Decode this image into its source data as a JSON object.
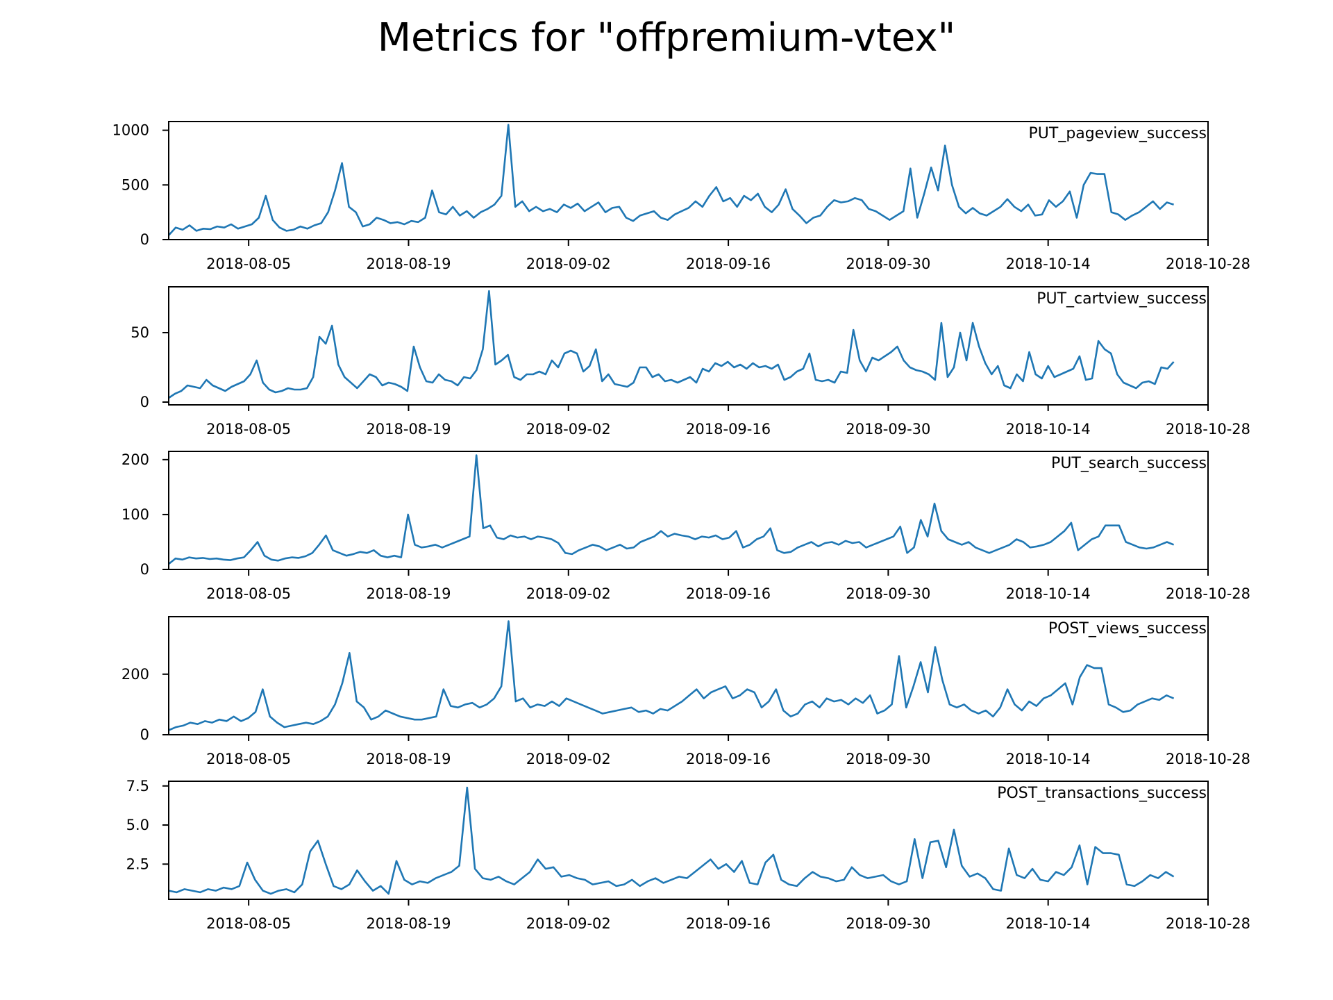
{
  "figure": {
    "title": "Metrics for \"offpremium-vtex\"",
    "line_color": "#1f77b4"
  },
  "chart_data": [
    {
      "type": "line",
      "title": "PUT_pageview_success",
      "x_axis": {
        "start": "2018-07-29",
        "end": "2018-10-28",
        "ticks": [
          "2018-08-05",
          "2018-08-19",
          "2018-09-02",
          "2018-09-16",
          "2018-09-30",
          "2018-10-14",
          "2018-10-28"
        ]
      },
      "ylim": [
        0,
        1080
      ],
      "yticks": [
        {
          "v": 0,
          "label": "0"
        },
        {
          "v": 500,
          "label": "500"
        },
        {
          "v": 1000,
          "label": "1000"
        }
      ],
      "series": [
        {
          "x_start": "2018-07-29",
          "x_end": "2018-10-25",
          "values": [
            40,
            110,
            90,
            130,
            80,
            100,
            95,
            120,
            110,
            140,
            100,
            120,
            140,
            200,
            400,
            180,
            110,
            80,
            90,
            120,
            100,
            130,
            150,
            250,
            450,
            700,
            300,
            250,
            120,
            140,
            200,
            180,
            150,
            160,
            140,
            170,
            160,
            200,
            450,
            250,
            230,
            300,
            220,
            260,
            200,
            250,
            280,
            320,
            400,
            1050,
            300,
            350,
            260,
            300,
            260,
            280,
            250,
            320,
            290,
            330,
            260,
            300,
            340,
            250,
            290,
            300,
            200,
            170,
            220,
            240,
            260,
            200,
            180,
            230,
            260,
            290,
            350,
            300,
            400,
            480,
            350,
            380,
            300,
            400,
            360,
            420,
            300,
            250,
            320,
            460,
            280,
            220,
            150,
            200,
            220,
            300,
            360,
            340,
            350,
            380,
            360,
            280,
            260,
            220,
            180,
            220,
            260,
            650,
            200,
            420,
            660,
            450,
            860,
            500,
            300,
            240,
            290,
            240,
            220,
            260,
            300,
            370,
            300,
            260,
            320,
            220,
            230,
            360,
            300,
            350,
            440,
            200,
            500,
            610,
            600,
            600,
            250,
            230,
            180,
            220,
            250,
            300,
            350,
            280,
            340,
            320
          ]
        }
      ]
    },
    {
      "type": "line",
      "title": "PUT_cartview_success",
      "x_axis": {
        "start": "2018-07-29",
        "end": "2018-10-28",
        "ticks": [
          "2018-08-05",
          "2018-08-19",
          "2018-09-02",
          "2018-09-16",
          "2018-09-30",
          "2018-10-14",
          "2018-10-28"
        ]
      },
      "ylim": [
        -2,
        83
      ],
      "yticks": [
        {
          "v": 0,
          "label": "0"
        },
        {
          "v": 50,
          "label": "50"
        }
      ],
      "series": [
        {
          "x_start": "2018-07-29",
          "x_end": "2018-10-25",
          "values": [
            3,
            6,
            8,
            12,
            11,
            10,
            16,
            12,
            10,
            8,
            11,
            13,
            15,
            20,
            30,
            14,
            9,
            7,
            8,
            10,
            9,
            9,
            10,
            18,
            47,
            42,
            55,
            27,
            18,
            14,
            10,
            15,
            20,
            18,
            12,
            14,
            13,
            11,
            8,
            40,
            25,
            15,
            14,
            20,
            16,
            15,
            12,
            18,
            17,
            23,
            38,
            80,
            27,
            30,
            34,
            18,
            16,
            20,
            20,
            22,
            20,
            30,
            25,
            35,
            37,
            35,
            22,
            26,
            38,
            15,
            20,
            13,
            12,
            11,
            14,
            25,
            25,
            18,
            20,
            15,
            16,
            14,
            16,
            18,
            14,
            24,
            22,
            28,
            26,
            29,
            25,
            27,
            24,
            28,
            25,
            26,
            24,
            27,
            16,
            18,
            22,
            24,
            35,
            16,
            15,
            16,
            14,
            22,
            21,
            52,
            30,
            22,
            32,
            30,
            33,
            36,
            40,
            30,
            25,
            23,
            22,
            20,
            16,
            57,
            18,
            25,
            50,
            30,
            57,
            40,
            28,
            20,
            26,
            12,
            10,
            20,
            15,
            36,
            20,
            17,
            26,
            18,
            20,
            22,
            24,
            33,
            16,
            17,
            44,
            38,
            35,
            20,
            14,
            12,
            10,
            14,
            15,
            13,
            25,
            24,
            29
          ]
        }
      ]
    },
    {
      "type": "line",
      "title": "PUT_search_success",
      "x_axis": {
        "start": "2018-07-29",
        "end": "2018-10-28",
        "ticks": [
          "2018-08-05",
          "2018-08-19",
          "2018-09-02",
          "2018-09-16",
          "2018-09-30",
          "2018-10-14",
          "2018-10-28"
        ]
      },
      "ylim": [
        0,
        215
      ],
      "yticks": [
        {
          "v": 0,
          "label": "0"
        },
        {
          "v": 100,
          "label": "100"
        },
        {
          "v": 200,
          "label": "200"
        }
      ],
      "series": [
        {
          "x_start": "2018-07-29",
          "x_end": "2018-10-25",
          "values": [
            10,
            20,
            18,
            22,
            20,
            21,
            19,
            20,
            18,
            17,
            20,
            22,
            35,
            50,
            25,
            18,
            16,
            20,
            22,
            21,
            24,
            30,
            45,
            62,
            35,
            30,
            25,
            28,
            32,
            30,
            35,
            25,
            22,
            25,
            22,
            100,
            45,
            40,
            42,
            45,
            40,
            45,
            50,
            55,
            60,
            208,
            75,
            80,
            58,
            55,
            62,
            58,
            60,
            55,
            60,
            58,
            55,
            48,
            30,
            28,
            35,
            40,
            45,
            42,
            35,
            40,
            45,
            38,
            40,
            50,
            55,
            60,
            70,
            60,
            65,
            62,
            60,
            55,
            60,
            58,
            62,
            55,
            58,
            70,
            40,
            45,
            55,
            60,
            75,
            35,
            30,
            32,
            40,
            45,
            50,
            42,
            48,
            50,
            45,
            52,
            48,
            50,
            40,
            45,
            50,
            55,
            60,
            78,
            30,
            40,
            90,
            60,
            120,
            70,
            55,
            50,
            45,
            50,
            40,
            35,
            30,
            35,
            40,
            45,
            55,
            50,
            40,
            42,
            45,
            50,
            60,
            70,
            85,
            35,
            45,
            55,
            60,
            80,
            80,
            80,
            50,
            45,
            40,
            38,
            40,
            45,
            50,
            45
          ]
        }
      ]
    },
    {
      "type": "line",
      "title": "POST_views_success",
      "x_axis": {
        "start": "2018-07-29",
        "end": "2018-10-28",
        "ticks": [
          "2018-08-05",
          "2018-08-19",
          "2018-09-02",
          "2018-09-16",
          "2018-09-30",
          "2018-10-14",
          "2018-10-28"
        ]
      },
      "ylim": [
        0,
        390
      ],
      "yticks": [
        {
          "v": 0,
          "label": "0"
        },
        {
          "v": 200,
          "label": "200"
        }
      ],
      "series": [
        {
          "x_start": "2018-07-29",
          "x_end": "2018-10-25",
          "values": [
            15,
            25,
            30,
            40,
            35,
            45,
            40,
            50,
            45,
            60,
            45,
            55,
            75,
            150,
            60,
            40,
            25,
            30,
            35,
            40,
            35,
            45,
            60,
            100,
            170,
            270,
            110,
            90,
            50,
            60,
            80,
            70,
            60,
            55,
            50,
            50,
            55,
            60,
            150,
            95,
            90,
            100,
            105,
            90,
            100,
            120,
            160,
            375,
            110,
            120,
            90,
            100,
            95,
            110,
            95,
            120,
            110,
            100,
            90,
            80,
            70,
            75,
            80,
            85,
            90,
            75,
            80,
            70,
            85,
            80,
            95,
            110,
            130,
            150,
            120,
            140,
            150,
            160,
            120,
            130,
            150,
            140,
            90,
            110,
            150,
            80,
            60,
            70,
            100,
            110,
            90,
            120,
            110,
            115,
            100,
            120,
            105,
            130,
            70,
            80,
            100,
            260,
            90,
            160,
            240,
            140,
            290,
            180,
            100,
            90,
            100,
            80,
            70,
            80,
            60,
            90,
            150,
            100,
            80,
            110,
            95,
            120,
            130,
            150,
            170,
            100,
            190,
            230,
            220,
            220,
            100,
            90,
            75,
            80,
            100,
            110,
            120,
            115,
            130,
            120
          ]
        }
      ]
    },
    {
      "type": "line",
      "title": "POST_transactions_success",
      "x_axis": {
        "start": "2018-07-29",
        "end": "2018-10-28",
        "ticks": [
          "2018-08-05",
          "2018-08-19",
          "2018-09-02",
          "2018-09-16",
          "2018-09-30",
          "2018-10-14",
          "2018-10-28"
        ]
      },
      "ylim": [
        0.25,
        7.8
      ],
      "yticks": [
        {
          "v": 2.5,
          "label": "2.5"
        },
        {
          "v": 5.0,
          "label": "5.0"
        },
        {
          "v": 7.5,
          "label": "7.5"
        }
      ],
      "series": [
        {
          "x_start": "2018-07-29",
          "x_end": "2018-10-25",
          "values": [
            0.8,
            0.7,
            0.9,
            0.8,
            0.7,
            0.9,
            0.8,
            1.0,
            0.9,
            1.1,
            2.6,
            1.5,
            0.8,
            0.6,
            0.8,
            0.9,
            0.7,
            1.2,
            3.3,
            4.0,
            2.5,
            1.1,
            0.9,
            1.2,
            2.1,
            1.4,
            0.8,
            1.1,
            0.6,
            2.7,
            1.5,
            1.2,
            1.4,
            1.3,
            1.6,
            1.8,
            2.0,
            2.4,
            7.4,
            2.2,
            1.6,
            1.5,
            1.7,
            1.4,
            1.2,
            1.6,
            2.0,
            2.8,
            2.2,
            2.3,
            1.7,
            1.8,
            1.6,
            1.5,
            1.2,
            1.3,
            1.4,
            1.1,
            1.2,
            1.5,
            1.1,
            1.4,
            1.6,
            1.3,
            1.5,
            1.7,
            1.6,
            2.0,
            2.4,
            2.8,
            2.2,
            2.5,
            2.0,
            2.7,
            1.3,
            1.2,
            2.6,
            3.1,
            1.5,
            1.2,
            1.1,
            1.6,
            2.0,
            1.7,
            1.6,
            1.4,
            1.5,
            2.3,
            1.8,
            1.6,
            1.7,
            1.8,
            1.4,
            1.2,
            1.4,
            4.1,
            1.6,
            3.9,
            4.0,
            2.3,
            4.7,
            2.4,
            1.7,
            1.9,
            1.6,
            0.9,
            0.8,
            3.5,
            1.8,
            1.6,
            2.2,
            1.5,
            1.4,
            2.0,
            1.8,
            2.3,
            3.7,
            1.2,
            3.6,
            3.2,
            3.2,
            3.1,
            1.2,
            1.1,
            1.4,
            1.8,
            1.6,
            2.0,
            1.7
          ]
        }
      ]
    }
  ]
}
